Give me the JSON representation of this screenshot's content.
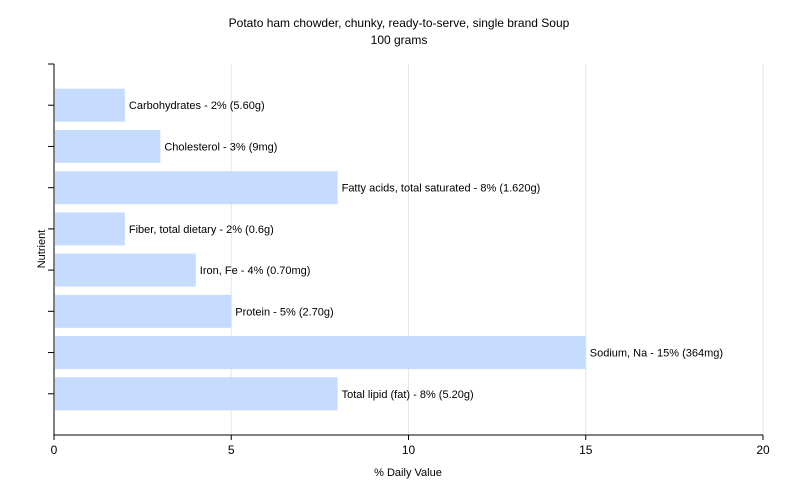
{
  "chart_data": {
    "type": "bar",
    "orientation": "horizontal",
    "title": "Potato ham chowder, chunky, ready-to-serve, single brand Soup",
    "subtitle": "100 grams",
    "xlabel": "% Daily Value",
    "ylabel": "Nutrient",
    "xlim": [
      0,
      20
    ],
    "xticks": [
      0,
      5,
      10,
      15,
      20
    ],
    "grid": true,
    "bar_color": "#c6dcff",
    "categories": [
      "Carbohydrates",
      "Cholesterol",
      "Fatty acids, total saturated",
      "Fiber, total dietary",
      "Iron, Fe",
      "Protein",
      "Sodium, Na",
      "Total lipid (fat)"
    ],
    "values": [
      2,
      3,
      8,
      2,
      4,
      5,
      15,
      8
    ],
    "labels": [
      "Carbohydrates - 2% (5.60g)",
      "Cholesterol - 3% (9mg)",
      "Fatty acids, total saturated - 8% (1.620g)",
      "Fiber, total dietary - 2% (0.6g)",
      "Iron, Fe - 4% (0.70mg)",
      "Protein - 5% (2.70g)",
      "Sodium, Na - 15% (364mg)",
      "Total lipid (fat) - 8% (5.20g)"
    ]
  }
}
